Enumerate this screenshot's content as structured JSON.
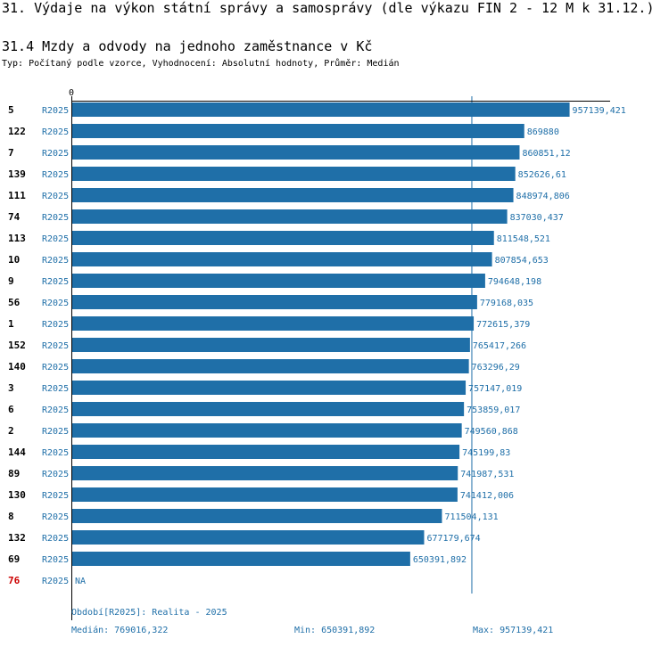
{
  "header": {
    "title": "31. Výdaje na výkon státní správy a samosprávy (dle výkazu FIN 2 - 12 M k 31.12.)",
    "section_title": "31.4 Mzdy a odvody na jednoho zaměstnance v Kč",
    "subtitle": "Typ: Počítaný podle vzorce, Vyhodnocení: Absolutní hodnoty, Průměr: Medián"
  },
  "colors": {
    "bar": "#1f6fa8",
    "value_text": "#1f6fa8",
    "id_default": "#000000",
    "id_highlight": "#cc0000",
    "axis": "#000000",
    "median_line": "#1f6fa8"
  },
  "chart_data": {
    "type": "bar",
    "orientation": "horizontal",
    "axis_zero_label": "0",
    "xlim": [
      0,
      1030000
    ],
    "median": 769016.322,
    "rows": [
      {
        "id": "5",
        "period": "R2025",
        "value": 957139.421,
        "label": "957139,421",
        "highlight": false
      },
      {
        "id": "122",
        "period": "R2025",
        "value": 869880,
        "label": "869880",
        "highlight": false
      },
      {
        "id": "7",
        "period": "R2025",
        "value": 860851.12,
        "label": "860851,12",
        "highlight": false
      },
      {
        "id": "139",
        "period": "R2025",
        "value": 852626.61,
        "label": "852626,61",
        "highlight": false
      },
      {
        "id": "111",
        "period": "R2025",
        "value": 848974.806,
        "label": "848974,806",
        "highlight": false
      },
      {
        "id": "74",
        "period": "R2025",
        "value": 837030.437,
        "label": "837030,437",
        "highlight": false
      },
      {
        "id": "113",
        "period": "R2025",
        "value": 811548.521,
        "label": "811548,521",
        "highlight": false
      },
      {
        "id": "10",
        "period": "R2025",
        "value": 807854.653,
        "label": "807854,653",
        "highlight": false
      },
      {
        "id": "9",
        "period": "R2025",
        "value": 794648.198,
        "label": "794648,198",
        "highlight": false
      },
      {
        "id": "56",
        "period": "R2025",
        "value": 779168.035,
        "label": "779168,035",
        "highlight": false
      },
      {
        "id": "1",
        "period": "R2025",
        "value": 772615.379,
        "label": "772615,379",
        "highlight": false
      },
      {
        "id": "152",
        "period": "R2025",
        "value": 765417.266,
        "label": "765417,266",
        "highlight": false
      },
      {
        "id": "140",
        "period": "R2025",
        "value": 763296.29,
        "label": "763296,29",
        "highlight": false
      },
      {
        "id": "3",
        "period": "R2025",
        "value": 757147.019,
        "label": "757147,019",
        "highlight": false
      },
      {
        "id": "6",
        "period": "R2025",
        "value": 753859.017,
        "label": "753859,017",
        "highlight": false
      },
      {
        "id": "2",
        "period": "R2025",
        "value": 749560.868,
        "label": "749560,868",
        "highlight": false
      },
      {
        "id": "144",
        "period": "R2025",
        "value": 745199.83,
        "label": "745199,83",
        "highlight": false
      },
      {
        "id": "89",
        "period": "R2025",
        "value": 741987.531,
        "label": "741987,531",
        "highlight": false
      },
      {
        "id": "130",
        "period": "R2025",
        "value": 741412.006,
        "label": "741412,006",
        "highlight": false
      },
      {
        "id": "8",
        "period": "R2025",
        "value": 711504.131,
        "label": "711504,131",
        "highlight": false
      },
      {
        "id": "132",
        "period": "R2025",
        "value": 677179.674,
        "label": "677179,674",
        "highlight": false
      },
      {
        "id": "69",
        "period": "R2025",
        "value": 650391.892,
        "label": "650391,892",
        "highlight": false
      },
      {
        "id": "76",
        "period": "R2025",
        "value": null,
        "label": "NA",
        "highlight": true
      }
    ]
  },
  "footer": {
    "period_legend": "Období[R2025]: Realita - 2025",
    "median": "Medián: 769016,322",
    "min": "Min: 650391,892",
    "max": "Max: 957139,421"
  }
}
